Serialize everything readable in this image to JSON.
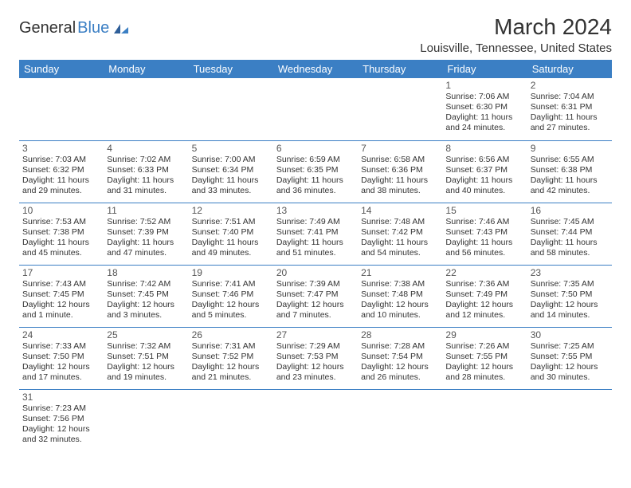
{
  "logo": {
    "word1": "General",
    "word2": "Blue"
  },
  "title": "March 2024",
  "location": "Louisville, Tennessee, United States",
  "colors": {
    "header_bg": "#3b7fc4",
    "header_text": "#ffffff",
    "border": "#3b7fc4",
    "text": "#333333",
    "daynum": "#555555",
    "page_bg": "#ffffff"
  },
  "weekdays": [
    "Sunday",
    "Monday",
    "Tuesday",
    "Wednesday",
    "Thursday",
    "Friday",
    "Saturday"
  ],
  "first_weekday_index": 5,
  "days": [
    {
      "n": 1,
      "sr": "7:06 AM",
      "ss": "6:30 PM",
      "dl": "11 hours and 24 minutes."
    },
    {
      "n": 2,
      "sr": "7:04 AM",
      "ss": "6:31 PM",
      "dl": "11 hours and 27 minutes."
    },
    {
      "n": 3,
      "sr": "7:03 AM",
      "ss": "6:32 PM",
      "dl": "11 hours and 29 minutes."
    },
    {
      "n": 4,
      "sr": "7:02 AM",
      "ss": "6:33 PM",
      "dl": "11 hours and 31 minutes."
    },
    {
      "n": 5,
      "sr": "7:00 AM",
      "ss": "6:34 PM",
      "dl": "11 hours and 33 minutes."
    },
    {
      "n": 6,
      "sr": "6:59 AM",
      "ss": "6:35 PM",
      "dl": "11 hours and 36 minutes."
    },
    {
      "n": 7,
      "sr": "6:58 AM",
      "ss": "6:36 PM",
      "dl": "11 hours and 38 minutes."
    },
    {
      "n": 8,
      "sr": "6:56 AM",
      "ss": "6:37 PM",
      "dl": "11 hours and 40 minutes."
    },
    {
      "n": 9,
      "sr": "6:55 AM",
      "ss": "6:38 PM",
      "dl": "11 hours and 42 minutes."
    },
    {
      "n": 10,
      "sr": "7:53 AM",
      "ss": "7:38 PM",
      "dl": "11 hours and 45 minutes."
    },
    {
      "n": 11,
      "sr": "7:52 AM",
      "ss": "7:39 PM",
      "dl": "11 hours and 47 minutes."
    },
    {
      "n": 12,
      "sr": "7:51 AM",
      "ss": "7:40 PM",
      "dl": "11 hours and 49 minutes."
    },
    {
      "n": 13,
      "sr": "7:49 AM",
      "ss": "7:41 PM",
      "dl": "11 hours and 51 minutes."
    },
    {
      "n": 14,
      "sr": "7:48 AM",
      "ss": "7:42 PM",
      "dl": "11 hours and 54 minutes."
    },
    {
      "n": 15,
      "sr": "7:46 AM",
      "ss": "7:43 PM",
      "dl": "11 hours and 56 minutes."
    },
    {
      "n": 16,
      "sr": "7:45 AM",
      "ss": "7:44 PM",
      "dl": "11 hours and 58 minutes."
    },
    {
      "n": 17,
      "sr": "7:43 AM",
      "ss": "7:45 PM",
      "dl": "12 hours and 1 minute."
    },
    {
      "n": 18,
      "sr": "7:42 AM",
      "ss": "7:45 PM",
      "dl": "12 hours and 3 minutes."
    },
    {
      "n": 19,
      "sr": "7:41 AM",
      "ss": "7:46 PM",
      "dl": "12 hours and 5 minutes."
    },
    {
      "n": 20,
      "sr": "7:39 AM",
      "ss": "7:47 PM",
      "dl": "12 hours and 7 minutes."
    },
    {
      "n": 21,
      "sr": "7:38 AM",
      "ss": "7:48 PM",
      "dl": "12 hours and 10 minutes."
    },
    {
      "n": 22,
      "sr": "7:36 AM",
      "ss": "7:49 PM",
      "dl": "12 hours and 12 minutes."
    },
    {
      "n": 23,
      "sr": "7:35 AM",
      "ss": "7:50 PM",
      "dl": "12 hours and 14 minutes."
    },
    {
      "n": 24,
      "sr": "7:33 AM",
      "ss": "7:50 PM",
      "dl": "12 hours and 17 minutes."
    },
    {
      "n": 25,
      "sr": "7:32 AM",
      "ss": "7:51 PM",
      "dl": "12 hours and 19 minutes."
    },
    {
      "n": 26,
      "sr": "7:31 AM",
      "ss": "7:52 PM",
      "dl": "12 hours and 21 minutes."
    },
    {
      "n": 27,
      "sr": "7:29 AM",
      "ss": "7:53 PM",
      "dl": "12 hours and 23 minutes."
    },
    {
      "n": 28,
      "sr": "7:28 AM",
      "ss": "7:54 PM",
      "dl": "12 hours and 26 minutes."
    },
    {
      "n": 29,
      "sr": "7:26 AM",
      "ss": "7:55 PM",
      "dl": "12 hours and 28 minutes."
    },
    {
      "n": 30,
      "sr": "7:25 AM",
      "ss": "7:55 PM",
      "dl": "12 hours and 30 minutes."
    },
    {
      "n": 31,
      "sr": "7:23 AM",
      "ss": "7:56 PM",
      "dl": "12 hours and 32 minutes."
    }
  ],
  "labels": {
    "sunrise": "Sunrise: ",
    "sunset": "Sunset: ",
    "daylight": "Daylight: "
  }
}
